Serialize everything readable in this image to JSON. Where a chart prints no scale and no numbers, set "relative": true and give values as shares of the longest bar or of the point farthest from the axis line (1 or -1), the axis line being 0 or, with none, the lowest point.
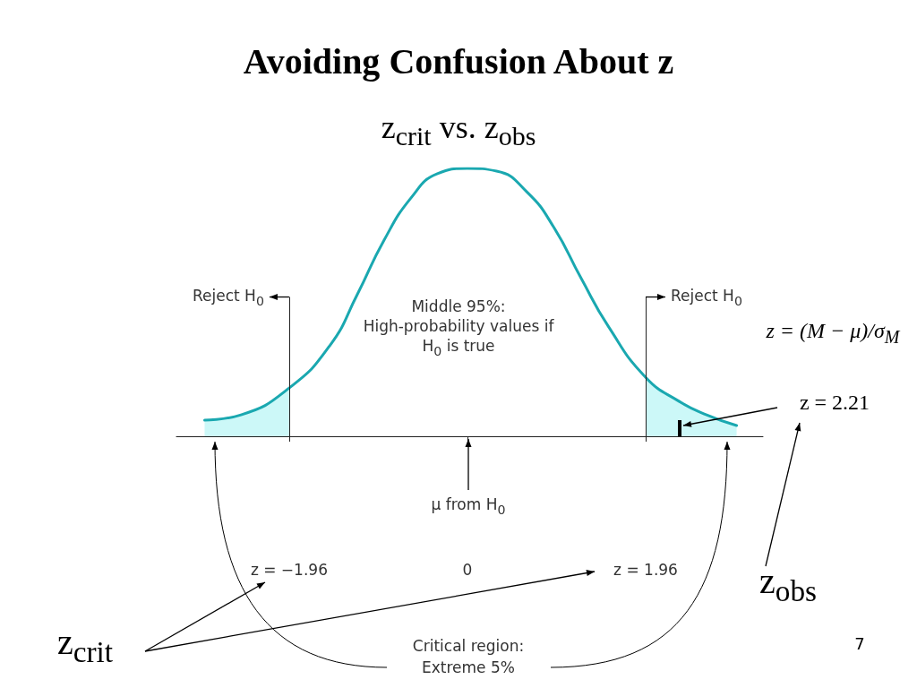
{
  "chart_data": {
    "type": "line",
    "title": "Avoiding Confusion About z",
    "subtitle": "z$_{crit}$ vs. z$_{obs}$",
    "relative": true,
    "xlim": [
      -3.2,
      3.25
    ],
    "xticks": [
      {
        "value": -1.96,
        "label": "z = −1.96"
      },
      0,
      {
        "value": 1.96,
        "label": "z = 1.96"
      }
    ],
    "series": [
      {
        "type": "area",
        "color": "#ccf8f8",
        "x": [
          -2.89,
          -2.49,
          -1.96
        ],
        "values": [
          0.06,
          0.08,
          0.18
        ]
      },
      {
        "type": "area",
        "color": "#ccf8f8",
        "x": [
          1.96,
          2.33,
          2.63,
          2.96
        ],
        "values": [
          0.22,
          0.13,
          0.08,
          0.04
        ]
      },
      {
        "color": "#1aa8b0",
        "x": [
          -2.89,
          -2.49,
          -1.96,
          -1.51,
          -1.21,
          -0.92,
          -0.62,
          -0.33,
          0,
          0.32,
          0.66,
          0.95,
          1.25,
          1.55,
          1.96,
          2.33,
          2.63,
          2.96
        ],
        "values": [
          0.06,
          0.08,
          0.18,
          0.34,
          0.53,
          0.73,
          0.89,
          0.98,
          1,
          0.99,
          0.91,
          0.78,
          0.59,
          0.41,
          0.22,
          0.13,
          0.08,
          0.04
        ]
      }
    ],
    "ref_lines": [
      {
        "axis": "x",
        "value": -1.96,
        "label": "Reject H$_{0}$"
      },
      {
        "axis": "x",
        "value": 1.96,
        "label": "Reject H$_{0}$"
      }
    ],
    "annotations": [
      "Middle 95%: High-probability values if H$_{0}$ is true",
      "μ from H$_{0}$",
      "z = 2.21",
      "z = (M − μ)/σ$_{M}$",
      "z$_{obs}$",
      "z$_{crit}$",
      "Critical region: Extreme 5%",
      "7"
    ],
    "tick_labels": "x"
  }
}
